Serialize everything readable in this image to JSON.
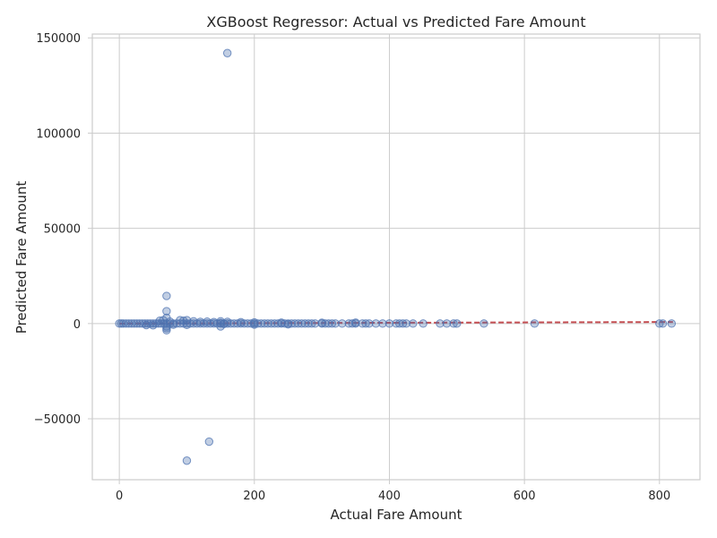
{
  "chart_data": {
    "type": "scatter",
    "title": "XGBoost Regressor: Actual vs Predicted Fare Amount",
    "xlabel": "Actual Fare Amount",
    "ylabel": "Predicted Fare Amount",
    "xlim": [
      -40,
      860
    ],
    "ylim": [
      -82000,
      152000
    ],
    "xticks": [
      0,
      200,
      400,
      600,
      800
    ],
    "xtick_labels": [
      "0",
      "200",
      "400",
      "600",
      "800"
    ],
    "yticks": [
      -50000,
      0,
      50000,
      100000,
      150000
    ],
    "ytick_labels": [
      "−50000",
      "0",
      "50000",
      "100000",
      "150000"
    ],
    "grid": true,
    "legend": "none",
    "point_color": "#4c72b0",
    "reference_line": {
      "x": [
        0,
        820
      ],
      "y": [
        0,
        820
      ],
      "color": "#c44e52",
      "style": "dashed"
    },
    "points": [
      [
        160,
        142000
      ],
      [
        70,
        14500
      ],
      [
        70,
        6500
      ],
      [
        70,
        3000
      ],
      [
        70,
        -3500
      ],
      [
        70,
        -2500
      ],
      [
        70,
        -1500
      ],
      [
        100,
        -72000
      ],
      [
        133,
        -62000
      ],
      [
        0,
        0
      ],
      [
        3,
        0
      ],
      [
        6,
        0
      ],
      [
        10,
        0
      ],
      [
        14,
        0
      ],
      [
        18,
        0
      ],
      [
        22,
        0
      ],
      [
        26,
        0
      ],
      [
        30,
        0
      ],
      [
        34,
        0
      ],
      [
        38,
        0
      ],
      [
        42,
        0
      ],
      [
        46,
        0
      ],
      [
        50,
        0
      ],
      [
        54,
        0
      ],
      [
        58,
        0
      ],
      [
        62,
        0
      ],
      [
        66,
        0
      ],
      [
        70,
        0
      ],
      [
        75,
        0
      ],
      [
        80,
        0
      ],
      [
        85,
        0
      ],
      [
        90,
        0
      ],
      [
        95,
        0
      ],
      [
        100,
        0
      ],
      [
        105,
        0
      ],
      [
        110,
        0
      ],
      [
        115,
        0
      ],
      [
        120,
        0
      ],
      [
        125,
        0
      ],
      [
        130,
        0
      ],
      [
        135,
        0
      ],
      [
        140,
        0
      ],
      [
        145,
        0
      ],
      [
        150,
        0
      ],
      [
        155,
        0
      ],
      [
        160,
        0
      ],
      [
        165,
        0
      ],
      [
        170,
        0
      ],
      [
        175,
        0
      ],
      [
        180,
        0
      ],
      [
        185,
        0
      ],
      [
        190,
        0
      ],
      [
        195,
        0
      ],
      [
        200,
        0
      ],
      [
        205,
        0
      ],
      [
        210,
        0
      ],
      [
        215,
        0
      ],
      [
        220,
        0
      ],
      [
        225,
        0
      ],
      [
        230,
        0
      ],
      [
        235,
        0
      ],
      [
        240,
        0
      ],
      [
        245,
        0
      ],
      [
        250,
        0
      ],
      [
        255,
        0
      ],
      [
        260,
        0
      ],
      [
        265,
        0
      ],
      [
        270,
        0
      ],
      [
        275,
        0
      ],
      [
        280,
        0
      ],
      [
        285,
        0
      ],
      [
        290,
        0
      ],
      [
        300,
        0
      ],
      [
        305,
        0
      ],
      [
        310,
        0
      ],
      [
        315,
        0
      ],
      [
        320,
        0
      ],
      [
        330,
        0
      ],
      [
        340,
        0
      ],
      [
        345,
        0
      ],
      [
        350,
        0
      ],
      [
        360,
        0
      ],
      [
        365,
        0
      ],
      [
        370,
        0
      ],
      [
        380,
        0
      ],
      [
        390,
        0
      ],
      [
        400,
        0
      ],
      [
        410,
        0
      ],
      [
        415,
        0
      ],
      [
        420,
        0
      ],
      [
        425,
        0
      ],
      [
        435,
        0
      ],
      [
        450,
        0
      ],
      [
        475,
        0
      ],
      [
        485,
        0
      ],
      [
        495,
        0
      ],
      [
        500,
        0
      ],
      [
        540,
        0
      ],
      [
        615,
        0
      ],
      [
        800,
        0
      ],
      [
        805,
        0
      ],
      [
        818,
        0
      ],
      [
        60,
        1500
      ],
      [
        65,
        1800
      ],
      [
        75,
        1000
      ],
      [
        90,
        1800
      ],
      [
        95,
        1500
      ],
      [
        100,
        1800
      ],
      [
        110,
        1200
      ],
      [
        120,
        900
      ],
      [
        130,
        1000
      ],
      [
        140,
        800
      ],
      [
        150,
        1200
      ],
      [
        160,
        900
      ],
      [
        180,
        700
      ],
      [
        200,
        600
      ],
      [
        240,
        500
      ],
      [
        300,
        400
      ],
      [
        350,
        500
      ],
      [
        40,
        -800
      ],
      [
        50,
        -900
      ],
      [
        80,
        -600
      ],
      [
        100,
        -700
      ],
      [
        150,
        -1500
      ],
      [
        200,
        -500
      ],
      [
        250,
        -400
      ],
      [
        150,
        300
      ],
      [
        155,
        -200
      ]
    ]
  }
}
